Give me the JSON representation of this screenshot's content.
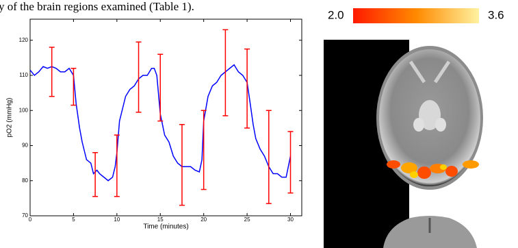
{
  "caption_fragment": "y of the brain regions examined (Table 1).",
  "chart_data": {
    "type": "line",
    "xlabel": "Time (minutes)",
    "ylabel": "pO2 (mmHg)",
    "xlim": [
      0,
      31.3
    ],
    "ylim": [
      70,
      126
    ],
    "xticks": [
      0,
      5,
      10,
      15,
      20,
      25,
      30
    ],
    "yticks": [
      70,
      80,
      90,
      100,
      110,
      120
    ],
    "series": [
      {
        "color": "#0000ff",
        "x": [
          0,
          0.5,
          1,
          1.5,
          2,
          2.5,
          3,
          3.5,
          4,
          4.5,
          5,
          5.3,
          5.7,
          6,
          6.5,
          7,
          7.3,
          7.7,
          8,
          8.5,
          9,
          9.5,
          9.8,
          10,
          10.3,
          10.7,
          11,
          11.5,
          12,
          12.5,
          13,
          13.5,
          14,
          14.3,
          14.6,
          15,
          15.5,
          16,
          16.5,
          17,
          17.5,
          18,
          18.5,
          19,
          19.5,
          19.8,
          20,
          20.5,
          21,
          21.5,
          22,
          22.5,
          23,
          23.5,
          24,
          24.5,
          25,
          25.3,
          25.7,
          26,
          26.5,
          27,
          27.5,
          28,
          28.5,
          29,
          29.5,
          30
        ],
        "values": [
          111.5,
          110,
          111,
          112.5,
          112,
          112.5,
          112,
          111,
          111,
          112,
          110,
          102,
          95,
          91,
          86,
          85,
          82,
          83,
          82,
          81,
          80,
          81,
          84,
          88,
          97,
          101,
          104,
          106,
          107,
          109,
          110,
          110,
          112,
          112,
          110,
          99,
          93,
          91,
          87,
          85,
          84,
          84,
          84,
          83,
          82.5,
          86,
          97,
          104,
          107,
          108,
          110,
          111,
          112,
          113,
          111,
          110,
          108,
          103,
          96,
          92,
          89,
          87,
          84,
          82,
          82,
          81,
          81,
          87
        ]
      }
    ],
    "error_bars": {
      "color": "#ff0000",
      "x": [
        2.5,
        5,
        7.5,
        10,
        12.5,
        15,
        17.5,
        20,
        22.5,
        25,
        27.5,
        30
      ],
      "values": [
        111,
        106.75,
        81.75,
        84.25,
        109.5,
        106.5,
        84.5,
        88.75,
        110.75,
        106.25,
        86.75,
        85.25
      ],
      "errors": [
        7,
        5.25,
        6.25,
        8.75,
        10,
        9.5,
        11.5,
        11.25,
        12.25,
        11.25,
        13.25,
        8.75
      ]
    }
  },
  "colorbar": {
    "ticks": [
      {
        "value": 2,
        "label": "2.0"
      },
      {
        "value": 3.6,
        "label": "3.6"
      }
    ]
  }
}
